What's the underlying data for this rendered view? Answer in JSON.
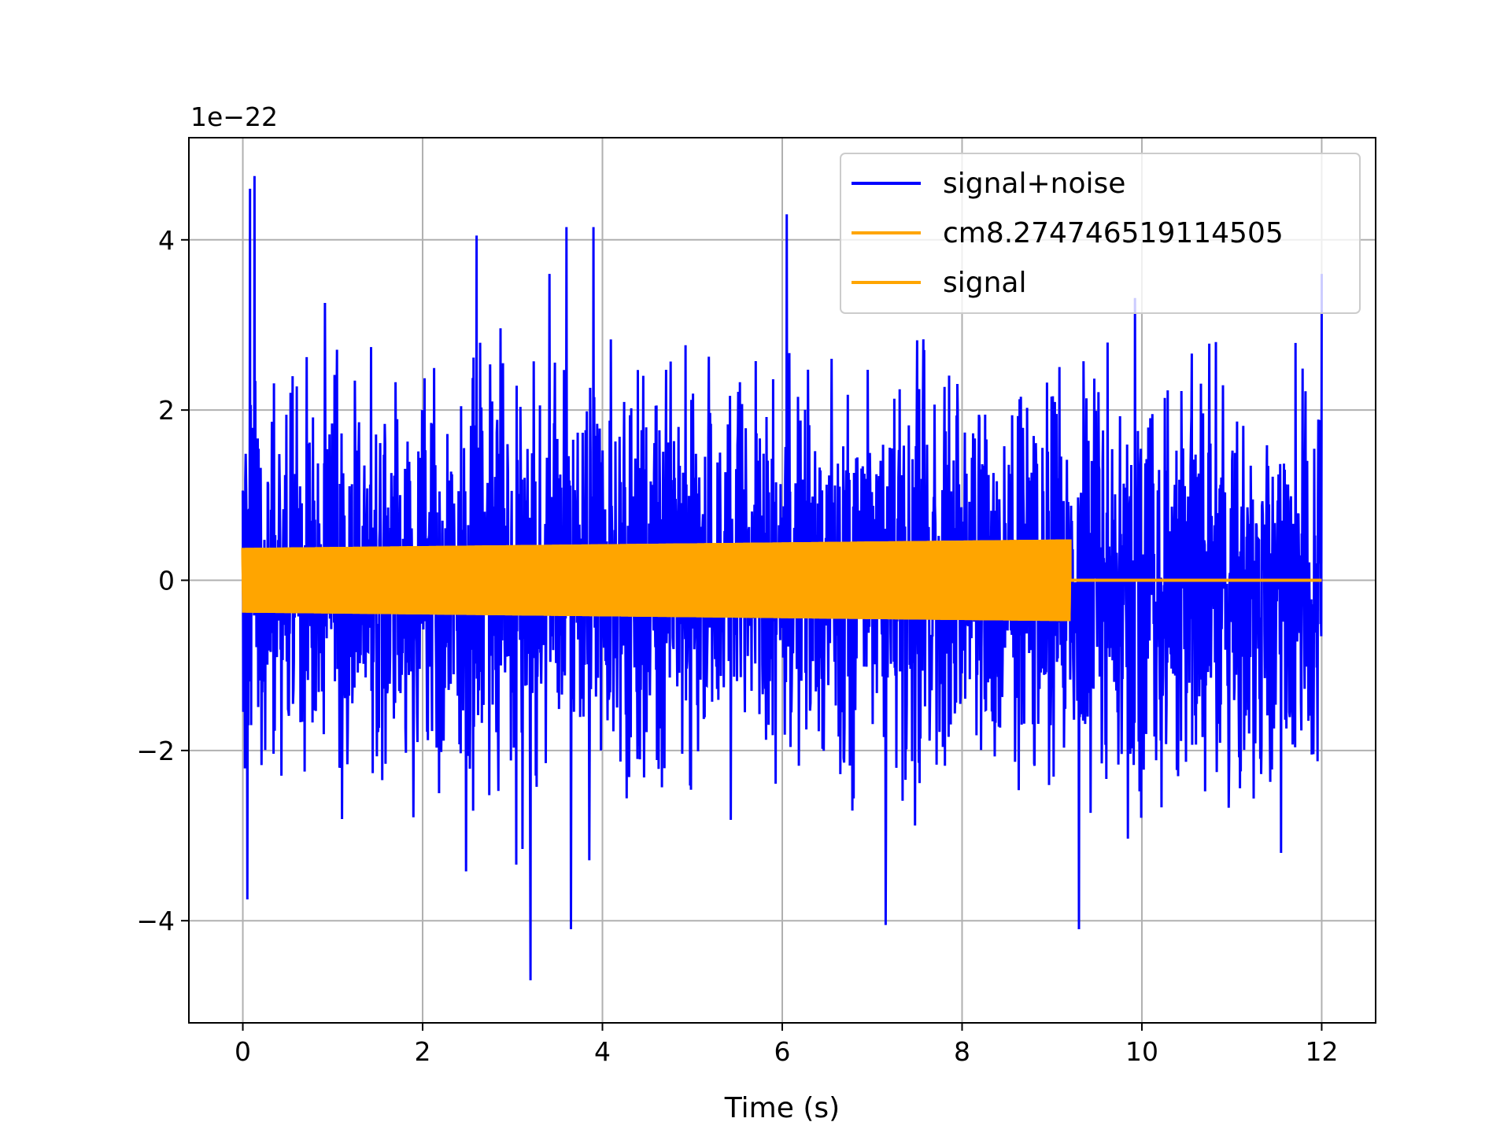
{
  "chart_data": {
    "type": "line",
    "title": "",
    "xlabel": "Time (s)",
    "ylabel": "",
    "y_offset_text": "1e−22",
    "y_scale_factor": 1e-22,
    "xlim": [
      -0.6,
      12.6
    ],
    "ylim": [
      -5.2,
      5.2
    ],
    "x_ticks": [
      0,
      2,
      4,
      6,
      8,
      10,
      12
    ],
    "x_tick_labels": [
      "0",
      "2",
      "4",
      "6",
      "8",
      "10",
      "12"
    ],
    "y_ticks": [
      -4,
      -2,
      0,
      2,
      4
    ],
    "y_tick_labels": [
      "−4",
      "−2",
      "0",
      "2",
      "4"
    ],
    "grid": true,
    "legend_position": "top-right",
    "series": [
      {
        "name": "signal+noise",
        "color": "#0000ff",
        "style": "noisy line",
        "x_range": [
          0,
          12
        ],
        "typical_envelope": [
          -2.6,
          2.6
        ],
        "peaks": [
          {
            "x": 0.13,
            "y": 4.75
          },
          {
            "x": 0.08,
            "y": 4.6
          },
          {
            "x": 6.05,
            "y": 4.3
          },
          {
            "x": 3.6,
            "y": 4.15
          },
          {
            "x": 3.9,
            "y": 4.15
          },
          {
            "x": 2.6,
            "y": 4.05
          },
          {
            "x": 3.2,
            "y": -4.7
          },
          {
            "x": 3.65,
            "y": -4.1
          },
          {
            "x": 9.3,
            "y": -4.1
          },
          {
            "x": 7.15,
            "y": -4.05
          },
          {
            "x": 0.05,
            "y": -3.75
          }
        ]
      },
      {
        "name": "cm8.274746519114505",
        "color": "#ffa500",
        "style": "oscillating chirp, amplitude growing until merger, then zero",
        "x_range": [
          0,
          12
        ],
        "amplitude_start": 0.38,
        "amplitude_end": 0.48,
        "merger_time": 9.2
      },
      {
        "name": "signal",
        "color": "#ffa500",
        "style": "same waveform as cm8.274746519114505 (overlapping)",
        "x_range": [
          0,
          12
        ],
        "amplitude_start": 0.38,
        "amplitude_end": 0.48,
        "merger_time": 9.2
      }
    ]
  }
}
